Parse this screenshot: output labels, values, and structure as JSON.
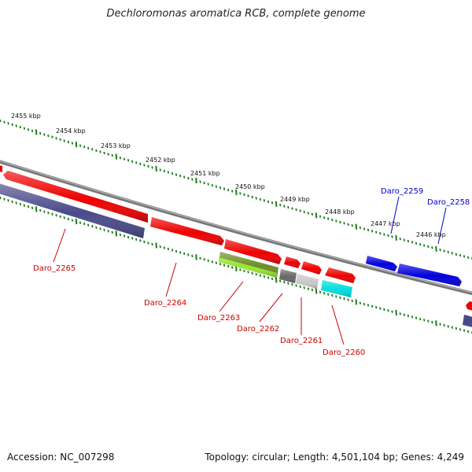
{
  "title": "Dechloromonas aromatica RCB, complete genome",
  "accession": "Accession: NC_007298",
  "summary": "Topology: circular; Length: 4,501,104 bp; Genes: 4,249",
  "scale_labels": [
    "2455 kbp",
    "2454 kbp",
    "2453 kbp",
    "2452 kbp",
    "2451 kbp",
    "2450 kbp",
    "2449 kbp",
    "2448 kbp",
    "2447 kbp",
    "2446 kbp"
  ],
  "colors": {
    "backbone": "#7a7a7a",
    "tick": "#1f7a1f",
    "gene_red": "#ee0000",
    "gene_blue": "#0000dd",
    "gene_slate": "#4a4a8a",
    "gene_olive": "#6b8e23",
    "gene_lime": "#99e633",
    "gene_gray": "#666666",
    "gene_lightgray": "#c8c8c8",
    "gene_cyan": "#00dddd",
    "label_red": "#cc0000",
    "label_blue": "#0000cc"
  },
  "genes": [
    {
      "name": "Daro_2265",
      "color": "label_red"
    },
    {
      "name": "Daro_2264",
      "color": "label_red"
    },
    {
      "name": "Daro_2263",
      "color": "label_red"
    },
    {
      "name": "Daro_2262",
      "color": "label_red"
    },
    {
      "name": "Daro_2261",
      "color": "label_red"
    },
    {
      "name": "Daro_2260",
      "color": "label_red"
    },
    {
      "name": "Daro_2259",
      "color": "label_blue"
    },
    {
      "name": "Daro_2258",
      "color": "label_blue"
    }
  ]
}
